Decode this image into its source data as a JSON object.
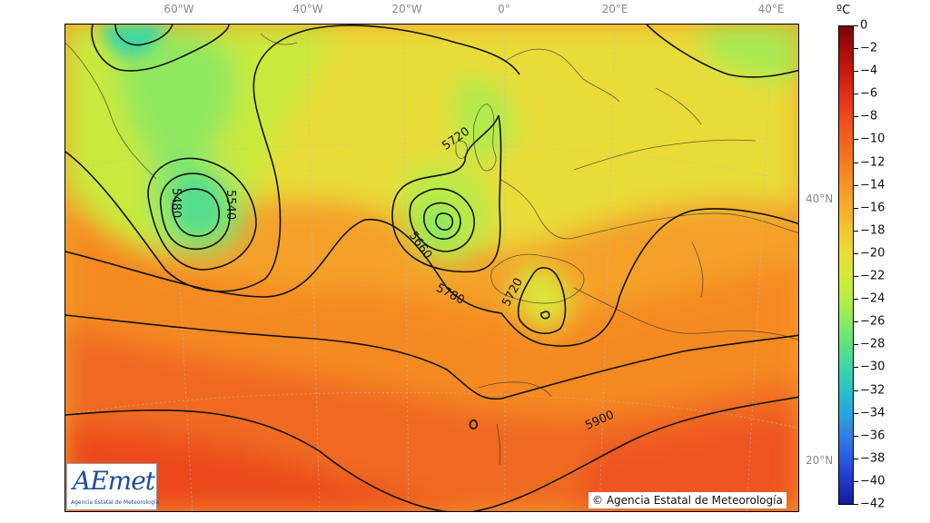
{
  "map": {
    "lon_labels": [
      "60°W",
      "40°W",
      "20°W",
      "0°",
      "20°E",
      "40°E"
    ],
    "lat_labels": [
      "40°N",
      "20°N"
    ],
    "contour_labels": [
      "5720",
      "5540",
      "5480",
      "5660",
      "5720",
      "5780",
      "5900"
    ]
  },
  "colorbar": {
    "unit": "ºC",
    "ticks": [
      "0",
      "−2",
      "−4",
      "−6",
      "−8",
      "−10",
      "−12",
      "−14",
      "−16",
      "−18",
      "−20",
      "−22",
      "−24",
      "−26",
      "−28",
      "−30",
      "−32",
      "−34",
      "−36",
      "−38",
      "−40",
      "−42"
    ],
    "colors": [
      "#7a0403",
      "#a40e08",
      "#c81a0f",
      "#e03018",
      "#ee4a1e",
      "#f2611f",
      "#f57a22",
      "#f89524",
      "#f9ad2a",
      "#f5c631",
      "#ecdd36",
      "#d6ea3a",
      "#b4ee47",
      "#8bea5f",
      "#5fe282",
      "#3dd6a6",
      "#28c2c8",
      "#2aa4e0",
      "#2f80e6",
      "#2c5be0",
      "#1f36c8",
      "#141d9a"
    ]
  },
  "branding": {
    "logo_text": "AEmet",
    "logo_subtitle": "Agencia Estatal de Meteorología",
    "copyright": "© Agencia Estatal de Meteorología"
  },
  "colors": {
    "contour": "#111111",
    "coast": "#333333"
  }
}
